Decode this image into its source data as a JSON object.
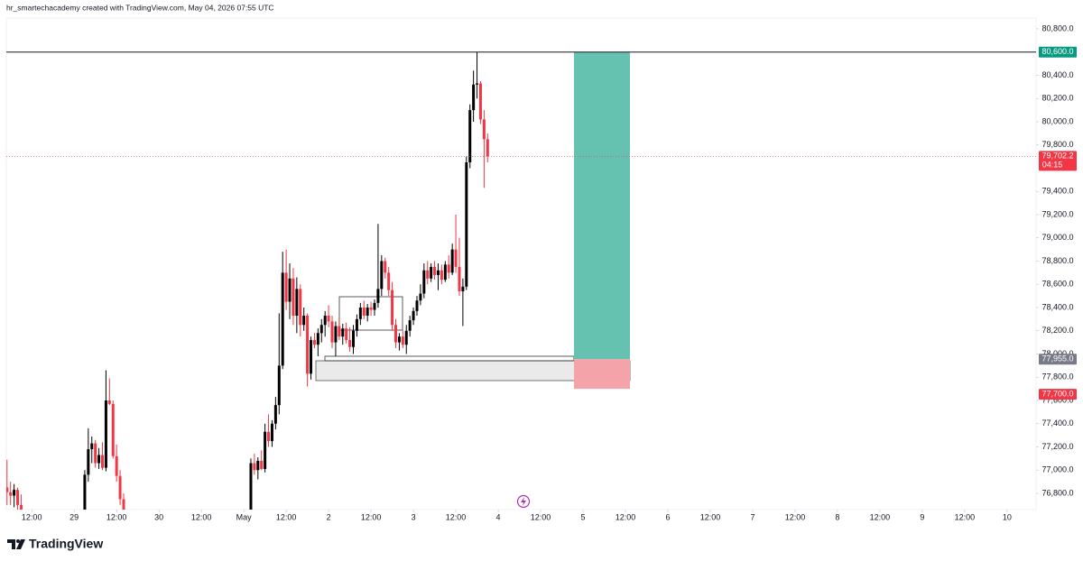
{
  "header": {
    "title": "hr_smartechacademy created with TradingView.com, May 04, 2026 07:55 UTC"
  },
  "footer": {
    "brand": "TradingView"
  },
  "chart_data": {
    "type": "candlestick",
    "up_color": "#000000",
    "down_color": "#f23645",
    "grid": false,
    "xlim": [
      -19.2,
      272.2
    ],
    "ylim": [
      76660,
      80893
    ],
    "xticks": [
      {
        "value": -12,
        "label": "12:00"
      },
      {
        "value": 0,
        "label": "29"
      },
      {
        "value": 12,
        "label": "12:00"
      },
      {
        "value": 24,
        "label": "30"
      },
      {
        "value": 36,
        "label": "12:00"
      },
      {
        "value": 48,
        "label": "May"
      },
      {
        "value": 60,
        "label": "12:00"
      },
      {
        "value": 72,
        "label": "2"
      },
      {
        "value": 84,
        "label": "12:00"
      },
      {
        "value": 96,
        "label": "3"
      },
      {
        "value": 108,
        "label": "12:00"
      },
      {
        "value": 120,
        "label": "4"
      },
      {
        "value": 132,
        "label": "12:00"
      },
      {
        "value": 144,
        "label": "5"
      },
      {
        "value": 156,
        "label": "12:00"
      },
      {
        "value": 168,
        "label": "6"
      },
      {
        "value": 180,
        "label": "12:00"
      },
      {
        "value": 192,
        "label": "7"
      },
      {
        "value": 204,
        "label": "12:00"
      },
      {
        "value": 216,
        "label": "8"
      },
      {
        "value": 228,
        "label": "12:00"
      },
      {
        "value": 240,
        "label": "9"
      },
      {
        "value": 252,
        "label": "12:00"
      },
      {
        "value": 264,
        "label": "10"
      }
    ],
    "yticks": [
      {
        "value": 80800,
        "label": "80,800.0"
      },
      {
        "value": 80400,
        "label": "80,400.0"
      },
      {
        "value": 80200,
        "label": "80,200.0"
      },
      {
        "value": 80000,
        "label": "80,000.0"
      },
      {
        "value": 79800,
        "label": "79,800.0"
      },
      {
        "value": 79400,
        "label": "79,400.0"
      },
      {
        "value": 79200,
        "label": "79,200.0"
      },
      {
        "value": 79000,
        "label": "79,000.0"
      },
      {
        "value": 78800,
        "label": "78,800.0"
      },
      {
        "value": 78600,
        "label": "78,600.0"
      },
      {
        "value": 78400,
        "label": "78,400.0"
      },
      {
        "value": 78200,
        "label": "78,200.0"
      },
      {
        "value": 78000,
        "label": "78,000.0"
      },
      {
        "value": 77800,
        "label": "77,800.0"
      },
      {
        "value": 77600,
        "label": "77,600.0"
      },
      {
        "value": 77400,
        "label": "77,400.0"
      },
      {
        "value": 77200,
        "label": "77,200.0"
      },
      {
        "value": 77000,
        "label": "77,000.0"
      },
      {
        "value": 76800,
        "label": "76,800.0"
      }
    ],
    "x": [
      -19,
      -18,
      -17,
      -16,
      -15,
      3,
      4,
      5,
      6,
      7,
      8,
      9,
      10,
      11,
      12,
      13,
      14,
      50,
      51,
      52,
      53,
      54,
      55,
      56,
      57,
      58,
      59,
      60,
      61,
      62,
      63,
      64,
      65,
      66,
      67,
      68,
      69,
      70,
      71,
      72,
      73,
      74,
      75,
      76,
      77,
      78,
      79,
      80,
      81,
      82,
      83,
      84,
      85,
      86,
      87,
      88,
      89,
      90,
      91,
      92,
      93,
      94,
      95,
      96,
      97,
      98,
      99,
      100,
      101,
      102,
      103,
      104,
      105,
      106,
      107,
      108,
      109,
      110,
      111,
      112,
      113,
      114,
      115,
      116,
      117
    ],
    "ohlc": [
      [
        76850,
        77090,
        76700,
        76810
      ],
      [
        76810,
        76900,
        76700,
        76780
      ],
      [
        76780,
        76880,
        76680,
        76830
      ],
      [
        76830,
        76850,
        76600,
        76700
      ],
      [
        76700,
        76790,
        76500,
        76560
      ],
      [
        76620,
        77000,
        76560,
        76960
      ],
      [
        76960,
        77360,
        76900,
        77180
      ],
      [
        77180,
        77290,
        77060,
        77230
      ],
      [
        77230,
        77260,
        77020,
        77060
      ],
      [
        77060,
        77190,
        77010,
        77130
      ],
      [
        77130,
        77240,
        77000,
        77020
      ],
      [
        77020,
        77860,
        76990,
        77600
      ],
      [
        77600,
        77790,
        77560,
        77570
      ],
      [
        77570,
        77600,
        77100,
        77120
      ],
      [
        77120,
        77220,
        76900,
        76950
      ],
      [
        76950,
        77000,
        76700,
        76750
      ],
      [
        76750,
        76800,
        76500,
        76600
      ],
      [
        76600,
        77100,
        76550,
        77060
      ],
      [
        77060,
        77140,
        76960,
        77000
      ],
      [
        77000,
        77110,
        76920,
        77080
      ],
      [
        77080,
        77170,
        77000,
        77010
      ],
      [
        77010,
        77400,
        76980,
        77330
      ],
      [
        77330,
        77480,
        77200,
        77250
      ],
      [
        77250,
        77430,
        77200,
        77400
      ],
      [
        77400,
        77630,
        77350,
        77560
      ],
      [
        77560,
        78350,
        77480,
        77900
      ],
      [
        77900,
        78880,
        77870,
        78700
      ],
      [
        78700,
        78900,
        78380,
        78450
      ],
      [
        78450,
        78780,
        78300,
        78650
      ],
      [
        78650,
        78740,
        78250,
        78330
      ],
      [
        78330,
        78660,
        78180,
        78560
      ],
      [
        78560,
        78600,
        78150,
        78250
      ],
      [
        78250,
        78400,
        78200,
        78330
      ],
      [
        78330,
        78350,
        77720,
        77830
      ],
      [
        77830,
        78150,
        77780,
        78120
      ],
      [
        78120,
        78180,
        78050,
        78080
      ],
      [
        78080,
        78220,
        77980,
        78180
      ],
      [
        78180,
        78300,
        78100,
        78250
      ],
      [
        78250,
        78370,
        78150,
        78330
      ],
      [
        78330,
        78420,
        78230,
        78280
      ],
      [
        78280,
        78330,
        78050,
        78100
      ],
      [
        78100,
        78280,
        77980,
        78240
      ],
      [
        78240,
        78310,
        78120,
        78150
      ],
      [
        78150,
        78260,
        78080,
        78220
      ],
      [
        78220,
        78270,
        78090,
        78120
      ],
      [
        78120,
        78230,
        78020,
        78060
      ],
      [
        78060,
        78250,
        78000,
        78200
      ],
      [
        78200,
        78340,
        78150,
        78300
      ],
      [
        78300,
        78440,
        78250,
        78400
      ],
      [
        78400,
        78460,
        78300,
        78330
      ],
      [
        78330,
        78430,
        78280,
        78400
      ],
      [
        78400,
        78450,
        78330,
        78380
      ],
      [
        78380,
        78470,
        78330,
        78440
      ],
      [
        78440,
        79120,
        78400,
        78560
      ],
      [
        78560,
        78850,
        78500,
        78800
      ],
      [
        78800,
        78830,
        78650,
        78700
      ],
      [
        78700,
        78750,
        78500,
        78550
      ],
      [
        78550,
        78620,
        78200,
        78250
      ],
      [
        78250,
        78300,
        78050,
        78100
      ],
      [
        78100,
        78180,
        78030,
        78150
      ],
      [
        78150,
        78200,
        78050,
        78080
      ],
      [
        78080,
        78250,
        78000,
        78200
      ],
      [
        78200,
        78330,
        78150,
        78290
      ],
      [
        78290,
        78400,
        78250,
        78370
      ],
      [
        78370,
        78500,
        78330,
        78460
      ],
      [
        78460,
        78600,
        78420,
        78520
      ],
      [
        78520,
        78780,
        78480,
        78720
      ],
      [
        78720,
        78800,
        78600,
        78650
      ],
      [
        78650,
        78780,
        78620,
        78750
      ],
      [
        78750,
        78800,
        78640,
        78680
      ],
      [
        78680,
        78780,
        78550,
        78720
      ],
      [
        78720,
        78770,
        78600,
        78640
      ],
      [
        78640,
        78800,
        78620,
        78770
      ],
      [
        78770,
        78850,
        78650,
        78700
      ],
      [
        78700,
        78950,
        78680,
        78900
      ],
      [
        78900,
        79200,
        78700,
        78750
      ],
      [
        78750,
        79000,
        78500,
        78540
      ],
      [
        78540,
        78650,
        78240,
        78580
      ],
      [
        78580,
        79700,
        78550,
        79650
      ],
      [
        79650,
        80150,
        79600,
        80100
      ],
      [
        80100,
        80440,
        80000,
        80320
      ],
      [
        80320,
        80600,
        80200,
        80330
      ],
      [
        80330,
        80350,
        79980,
        80020
      ],
      [
        80020,
        80100,
        79430,
        79850
      ],
      [
        79850,
        79900,
        79650,
        79702.2
      ]
    ],
    "position": {
      "target": {
        "value": 80600,
        "label": "80,600.0"
      },
      "entry": {
        "value": 77955,
        "label": "77,955.0"
      },
      "stop": {
        "value": 77700,
        "label": "77,700.0"
      }
    },
    "last_price": {
      "value": 79702.2,
      "label": "79,702.2",
      "countdown": "04:15"
    }
  }
}
